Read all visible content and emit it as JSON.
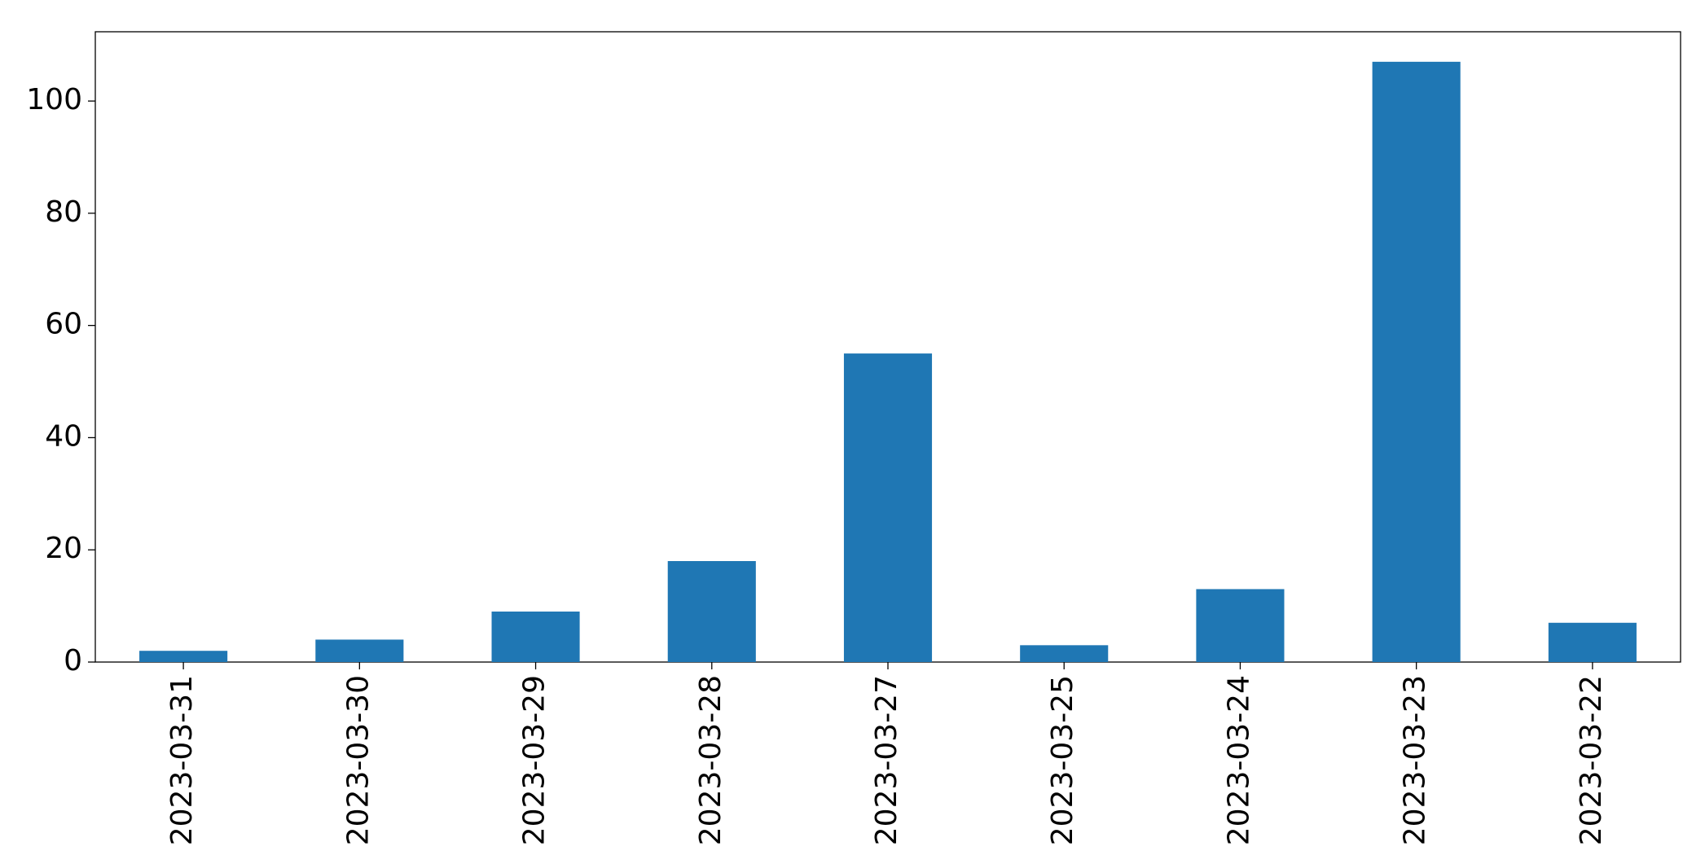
{
  "chart_data": {
    "type": "bar",
    "categories": [
      "2023-03-31",
      "2023-03-30",
      "2023-03-29",
      "2023-03-28",
      "2023-03-27",
      "2023-03-25",
      "2023-03-24",
      "2023-03-23",
      "2023-03-22"
    ],
    "values": [
      2,
      4,
      9,
      18,
      55,
      3,
      13,
      107,
      7
    ],
    "color": "#1f77b4",
    "ylim": [
      0,
      112.35
    ],
    "yticks": [
      0,
      20,
      40,
      60,
      80,
      100
    ],
    "grid": false
  }
}
